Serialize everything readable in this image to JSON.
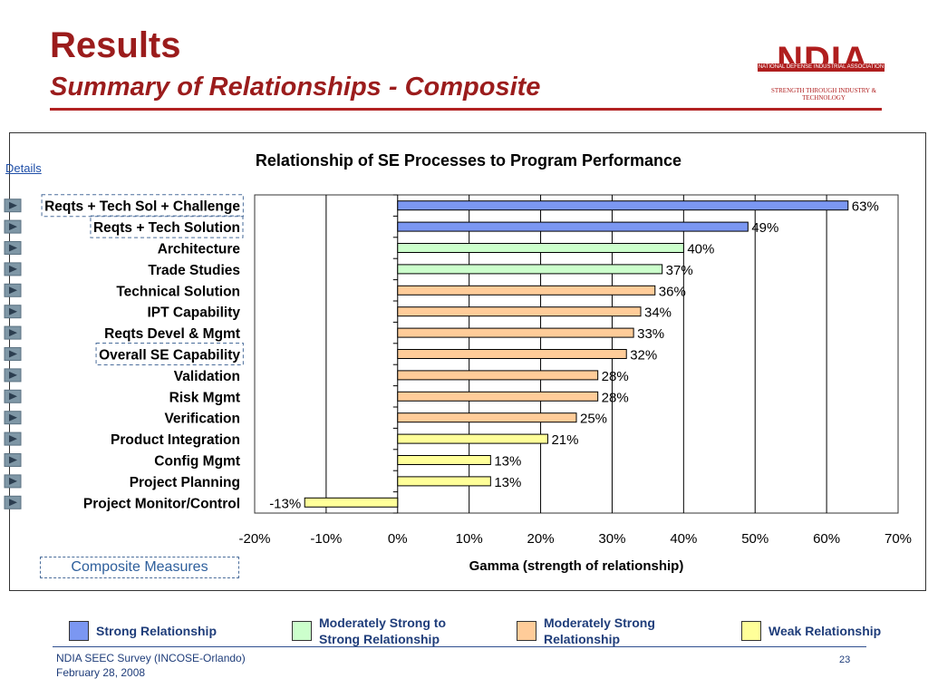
{
  "header": {
    "title": "Results",
    "subtitle": "Summary of Relationships - Composite"
  },
  "logo": {
    "letters": "NDIA",
    "band_text": "NATIONAL DEFENSE INDUSTRIAL ASSOCIATION",
    "tagline": "STRENGTH THROUGH INDUSTRY & TECHNOLOGY"
  },
  "details_link": "Details",
  "composite_label": "Composite Measures",
  "colors": {
    "strong": "#7b97f2",
    "mod_strong_to_strong": "#ccffcc",
    "mod_strong": "#ffcc99",
    "weak": "#ffff99",
    "accent": "#9b1c1c",
    "arrow": "#7f97a6"
  },
  "chart_data": {
    "type": "bar",
    "orientation": "horizontal",
    "title": "Relationship of SE Processes to Program Performance",
    "xlabel": "Gamma (strength of relationship)",
    "xlim": [
      -20,
      70
    ],
    "xticks": [
      "-20%",
      "-10%",
      "0%",
      "10%",
      "20%",
      "30%",
      "40%",
      "50%",
      "60%",
      "70%"
    ],
    "xtick_values": [
      -20,
      -10,
      0,
      10,
      20,
      30,
      40,
      50,
      60,
      70
    ],
    "grid": "vertical",
    "categories": [
      "Reqts + Tech Sol + Challenge",
      "Reqts + Tech Solution",
      "Architecture",
      "Trade Studies",
      "Technical Solution",
      "IPT Capability",
      "Reqts Devel & Mgmt",
      "Overall SE Capability",
      "Validation",
      "Risk Mgmt",
      "Verification",
      "Product Integration",
      "Config Mgmt",
      "Project Planning",
      "Project Monitor/Control"
    ],
    "values": [
      63,
      49,
      40,
      37,
      36,
      34,
      33,
      32,
      28,
      28,
      25,
      21,
      13,
      13,
      -13
    ],
    "value_labels": [
      "63%",
      "49%",
      "40%",
      "37%",
      "36%",
      "34%",
      "33%",
      "32%",
      "28%",
      "28%",
      "25%",
      "21%",
      "13%",
      "13%",
      "-13%"
    ],
    "strength": [
      "strong",
      "strong",
      "mod_strong_to_strong",
      "mod_strong_to_strong",
      "mod_strong",
      "mod_strong",
      "mod_strong",
      "mod_strong",
      "mod_strong",
      "mod_strong",
      "mod_strong",
      "weak",
      "weak",
      "weak",
      "weak"
    ],
    "dashed_boxed": [
      "Reqts + Tech Sol + Challenge",
      "Reqts + Tech Solution",
      "Overall SE Capability"
    ]
  },
  "legend": [
    {
      "key": "strong",
      "label": "Strong Relationship"
    },
    {
      "key": "mod_strong_to_strong",
      "label": "Moderately Strong to Strong Relationship"
    },
    {
      "key": "mod_strong",
      "label": "Moderately Strong Relationship"
    },
    {
      "key": "weak",
      "label": "Weak Relationship"
    }
  ],
  "footer": {
    "line1": "NDIA SEEC Survey (INCOSE-Orlando)",
    "line2": "February 28, 2008",
    "page": "23"
  }
}
